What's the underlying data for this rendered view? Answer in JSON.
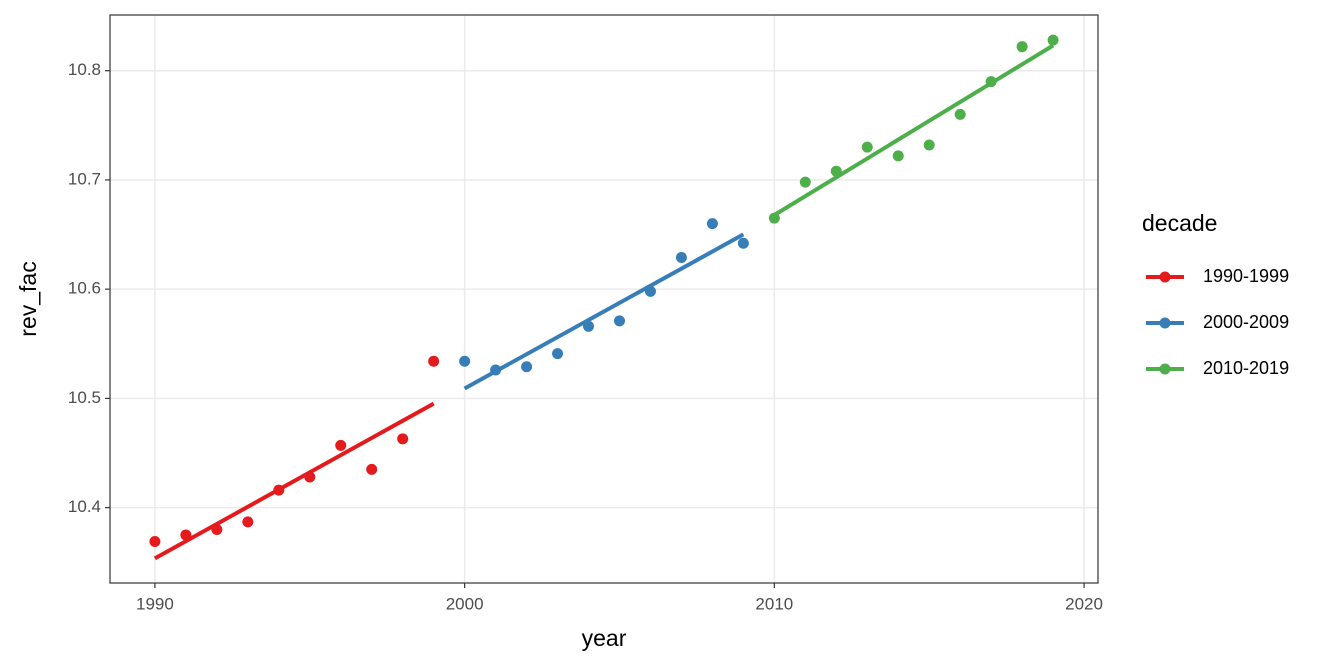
{
  "chart_data": {
    "type": "scatter",
    "smooth": "lm",
    "x_label": "year",
    "y_label": "rev_fac",
    "legend_title": "decade",
    "legend_position": "right",
    "grid": true,
    "xlim": [
      1988.55,
      2020.45
    ],
    "xticks": [
      1990,
      2000,
      2010,
      2020
    ],
    "ylim": [
      10.331,
      10.851
    ],
    "yticks": [
      10.4,
      10.5,
      10.6,
      10.7,
      10.8
    ],
    "series": [
      {
        "name": "1990-1999",
        "color": "#e41a1c",
        "x": [
          1990,
          1991,
          1992,
          1993,
          1994,
          1995,
          1996,
          1997,
          1998,
          1999
        ],
        "values": [
          10.369,
          10.375,
          10.38,
          10.387,
          10.416,
          10.428,
          10.457,
          10.435,
          10.463,
          10.534
        ]
      },
      {
        "name": "2000-2009",
        "color": "#377eb8",
        "x": [
          2000,
          2001,
          2002,
          2003,
          2004,
          2005,
          2006,
          2007,
          2008,
          2009
        ],
        "values": [
          10.534,
          10.526,
          10.529,
          10.541,
          10.566,
          10.571,
          10.598,
          10.629,
          10.66,
          10.642
        ]
      },
      {
        "name": "2010-2019",
        "color": "#4daf4a",
        "x": [
          2010,
          2011,
          2012,
          2013,
          2014,
          2015,
          2016,
          2017,
          2018,
          2019
        ],
        "values": [
          10.665,
          10.698,
          10.708,
          10.73,
          10.722,
          10.732,
          10.76,
          10.79,
          10.822,
          10.828
        ]
      }
    ]
  }
}
